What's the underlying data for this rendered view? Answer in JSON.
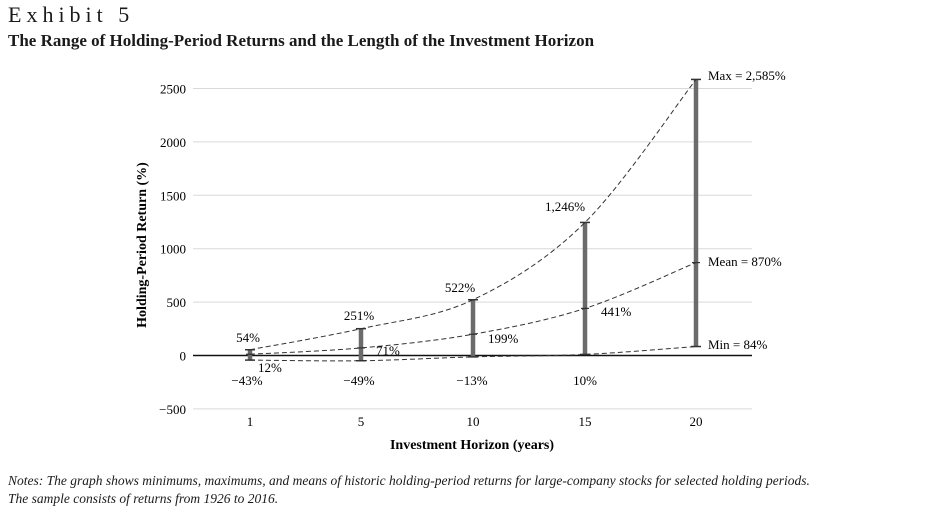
{
  "header": {
    "exhibit": "Exhibit 5",
    "title": "The Range of Holding-Period Returns and the Length of the Investment Horizon"
  },
  "notes": {
    "line1": "Notes: The graph shows minimums, maximums, and means of historic holding-period returns for large-company stocks for selected holding periods.",
    "line2": "The sample consists of returns from 1926 to 2016."
  },
  "chart_data": {
    "type": "line",
    "xlabel": "Investment Horizon (years)",
    "ylabel": "Holding-Period Return (%)",
    "categories": [
      "1",
      "5",
      "10",
      "15",
      "20"
    ],
    "ylim": [
      -500,
      2600
    ],
    "yticks": [
      -500,
      0,
      500,
      1000,
      1500,
      2000,
      2500
    ],
    "ytick_labels": [
      "−500",
      "0",
      "500",
      "1000",
      "1500",
      "2000",
      "2500"
    ],
    "grid": true,
    "series": [
      {
        "key": "max",
        "values": [
          54,
          251,
          522,
          1246,
          2585
        ]
      },
      {
        "key": "mean",
        "values": [
          12,
          71,
          199,
          441,
          870
        ]
      },
      {
        "key": "min",
        "values": [
          -43,
          -49,
          -13,
          10,
          84
        ]
      }
    ],
    "data_labels": {
      "max": [
        "54%",
        "251%",
        "522%",
        "1,246%",
        "Max = 2,585%"
      ],
      "mean": [
        "12%",
        "71%",
        "199%",
        "441%",
        "Mean = 870%"
      ],
      "min": [
        "−43%",
        "−49%",
        "−13%",
        "10%",
        "Min = 84%"
      ]
    },
    "colors": {
      "bar": "#6b6b6b",
      "line": "#333333",
      "grid": "#d9d9d9"
    }
  }
}
